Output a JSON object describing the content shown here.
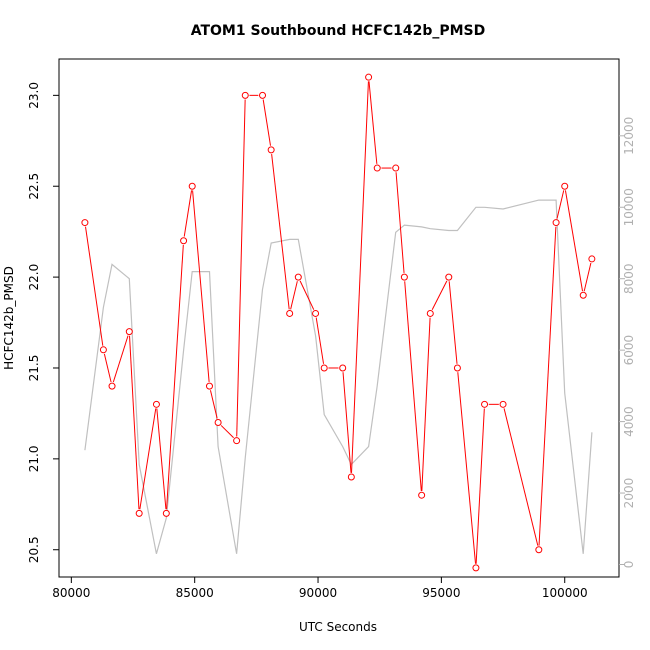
{
  "chart_data": {
    "type": "line",
    "title": "ATOM1 Southbound HCFC142b_PMSD",
    "xlabel": "UTC Seconds",
    "ylabel": "HCFC142b_PMSD",
    "xlim": [
      79500,
      102200
    ],
    "ylim": [
      20.35,
      23.2
    ],
    "y2lim": [
      -350,
      14150
    ],
    "xticks": [
      80000,
      85000,
      90000,
      95000,
      100000
    ],
    "yticks": [
      20.5,
      21.0,
      21.5,
      22.0,
      22.5,
      23.0
    ],
    "y2ticks": [
      0,
      2000,
      4000,
      6000,
      8000,
      10000,
      12000
    ],
    "x_tick_labels": [
      "80000",
      "85000",
      "90000",
      "95000",
      "100000"
    ],
    "y_tick_labels": [
      "20.5",
      "21.0",
      "21.5",
      "22.0",
      "22.5",
      "23.0"
    ],
    "y2_tick_labels": [
      "0",
      "2000",
      "4000",
      "6000",
      "8000",
      "10000",
      "12000"
    ],
    "grid": false,
    "series": [
      {
        "color": "#ff0000",
        "axis": "left",
        "marker": "open-circle",
        "x": [
          80550,
          81300,
          81650,
          82350,
          82750,
          83450,
          83850,
          84550,
          84900,
          85600,
          85950,
          86700,
          87050,
          87750,
          88100,
          88850,
          89200,
          89900,
          90250,
          91000,
          91350,
          92050,
          92400,
          93150,
          93500,
          94200,
          94550,
          95300,
          95650,
          96400,
          96750,
          97500,
          98950,
          99650,
          100000,
          100750,
          101100
        ],
        "y": [
          22.3,
          21.6,
          21.4,
          21.7,
          20.7,
          21.3,
          20.7,
          22.2,
          22.5,
          21.4,
          21.2,
          21.1,
          23.0,
          23.0,
          22.7,
          21.8,
          22.0,
          21.8,
          21.5,
          21.5,
          20.9,
          23.1,
          22.6,
          22.6,
          22.0,
          20.8,
          21.8,
          22.0,
          21.5,
          20.4,
          21.3,
          21.3,
          20.5,
          22.3,
          22.5,
          21.9,
          22.1
        ]
      },
      {
        "color": "#c0c0c0",
        "axis": "right",
        "marker": "none",
        "x": [
          80550,
          81300,
          81650,
          82350,
          82750,
          83450,
          83850,
          84550,
          84900,
          85600,
          85950,
          86700,
          87050,
          87750,
          88100,
          88850,
          89200,
          89900,
          90250,
          91000,
          91350,
          92050,
          92400,
          93150,
          93500,
          94200,
          94550,
          95300,
          95650,
          96400,
          96750,
          97500,
          98950,
          99650,
          100000,
          100750,
          101100
        ],
        "y": [
          3200,
          7200,
          8400,
          8000,
          2800,
          300,
          1300,
          6000,
          8200,
          8200,
          3300,
          300,
          3000,
          7700,
          9000,
          9100,
          9100,
          6400,
          4200,
          3300,
          2800,
          3300,
          5000,
          9300,
          9500,
          9450,
          9400,
          9350,
          9350,
          10000,
          10000,
          9950,
          10200,
          10200,
          4800,
          300,
          3700
        ]
      }
    ]
  }
}
